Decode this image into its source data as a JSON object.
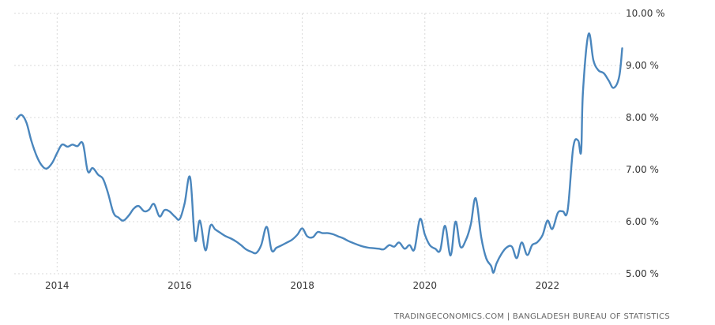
{
  "chart_data": {
    "type": "line",
    "title": "",
    "xlabel": "",
    "ylabel": "",
    "xlim": [
      2013.3,
      2023.2
    ],
    "ylim": [
      5.0,
      10.0
    ],
    "grid": true,
    "x_ticks": [
      {
        "value": 2014,
        "label": "2014"
      },
      {
        "value": 2016,
        "label": "2016"
      },
      {
        "value": 2018,
        "label": "2018"
      },
      {
        "value": 2020,
        "label": "2020"
      },
      {
        "value": 2022,
        "label": "2022"
      }
    ],
    "y_ticks": [
      {
        "value": 5,
        "label": "5.00 %"
      },
      {
        "value": 6,
        "label": "6.00 %"
      },
      {
        "value": 7,
        "label": "7.00 %"
      },
      {
        "value": 8,
        "label": "8.00 %"
      },
      {
        "value": 9,
        "label": "9.00 %"
      },
      {
        "value": 10,
        "label": "10.00 %"
      }
    ],
    "series": [
      {
        "color": "#4a86bd",
        "points": [
          [
            2013.34,
            7.97
          ],
          [
            2013.42,
            8.05
          ],
          [
            2013.5,
            7.9
          ],
          [
            2013.58,
            7.55
          ],
          [
            2013.67,
            7.25
          ],
          [
            2013.75,
            7.08
          ],
          [
            2013.83,
            7.02
          ],
          [
            2013.92,
            7.13
          ],
          [
            2014.0,
            7.32
          ],
          [
            2014.08,
            7.48
          ],
          [
            2014.17,
            7.44
          ],
          [
            2014.25,
            7.48
          ],
          [
            2014.33,
            7.45
          ],
          [
            2014.42,
            7.5
          ],
          [
            2014.5,
            6.97
          ],
          [
            2014.58,
            7.03
          ],
          [
            2014.67,
            6.9
          ],
          [
            2014.75,
            6.82
          ],
          [
            2014.83,
            6.55
          ],
          [
            2014.92,
            6.17
          ],
          [
            2015.0,
            6.08
          ],
          [
            2015.08,
            6.02
          ],
          [
            2015.17,
            6.12
          ],
          [
            2015.25,
            6.25
          ],
          [
            2015.33,
            6.3
          ],
          [
            2015.42,
            6.2
          ],
          [
            2015.5,
            6.23
          ],
          [
            2015.58,
            6.34
          ],
          [
            2015.67,
            6.1
          ],
          [
            2015.75,
            6.22
          ],
          [
            2015.83,
            6.2
          ],
          [
            2015.92,
            6.1
          ],
          [
            2016.0,
            6.05
          ],
          [
            2016.08,
            6.35
          ],
          [
            2016.17,
            6.85
          ],
          [
            2016.25,
            5.65
          ],
          [
            2016.33,
            6.02
          ],
          [
            2016.42,
            5.45
          ],
          [
            2016.5,
            5.92
          ],
          [
            2016.58,
            5.85
          ],
          [
            2016.67,
            5.78
          ],
          [
            2016.75,
            5.72
          ],
          [
            2016.83,
            5.68
          ],
          [
            2016.92,
            5.62
          ],
          [
            2017.0,
            5.55
          ],
          [
            2017.08,
            5.47
          ],
          [
            2017.17,
            5.42
          ],
          [
            2017.25,
            5.4
          ],
          [
            2017.33,
            5.55
          ],
          [
            2017.42,
            5.9
          ],
          [
            2017.5,
            5.45
          ],
          [
            2017.58,
            5.5
          ],
          [
            2017.67,
            5.55
          ],
          [
            2017.75,
            5.6
          ],
          [
            2017.83,
            5.65
          ],
          [
            2017.92,
            5.75
          ],
          [
            2018.0,
            5.87
          ],
          [
            2018.08,
            5.72
          ],
          [
            2018.17,
            5.7
          ],
          [
            2018.25,
            5.8
          ],
          [
            2018.33,
            5.78
          ],
          [
            2018.42,
            5.78
          ],
          [
            2018.5,
            5.76
          ],
          [
            2018.58,
            5.72
          ],
          [
            2018.67,
            5.68
          ],
          [
            2018.75,
            5.63
          ],
          [
            2018.83,
            5.59
          ],
          [
            2018.92,
            5.55
          ],
          [
            2019.0,
            5.52
          ],
          [
            2019.08,
            5.5
          ],
          [
            2019.17,
            5.49
          ],
          [
            2019.25,
            5.48
          ],
          [
            2019.33,
            5.47
          ],
          [
            2019.42,
            5.55
          ],
          [
            2019.5,
            5.52
          ],
          [
            2019.58,
            5.6
          ],
          [
            2019.67,
            5.48
          ],
          [
            2019.75,
            5.55
          ],
          [
            2019.83,
            5.47
          ],
          [
            2019.92,
            6.05
          ],
          [
            2020.0,
            5.75
          ],
          [
            2020.08,
            5.55
          ],
          [
            2020.17,
            5.48
          ],
          [
            2020.25,
            5.45
          ],
          [
            2020.33,
            5.92
          ],
          [
            2020.42,
            5.35
          ],
          [
            2020.5,
            6.0
          ],
          [
            2020.58,
            5.52
          ],
          [
            2020.67,
            5.65
          ],
          [
            2020.75,
            5.95
          ],
          [
            2020.83,
            6.45
          ],
          [
            2020.92,
            5.7
          ],
          [
            2021.0,
            5.3
          ],
          [
            2021.08,
            5.15
          ],
          [
            2021.12,
            5.02
          ],
          [
            2021.17,
            5.2
          ],
          [
            2021.25,
            5.38
          ],
          [
            2021.33,
            5.5
          ],
          [
            2021.42,
            5.52
          ],
          [
            2021.5,
            5.3
          ],
          [
            2021.58,
            5.6
          ],
          [
            2021.67,
            5.36
          ],
          [
            2021.75,
            5.55
          ],
          [
            2021.83,
            5.6
          ],
          [
            2021.92,
            5.74
          ],
          [
            2022.0,
            6.02
          ],
          [
            2022.08,
            5.86
          ],
          [
            2022.17,
            6.17
          ],
          [
            2022.25,
            6.2
          ],
          [
            2022.33,
            6.22
          ],
          [
            2022.42,
            7.42
          ],
          [
            2022.5,
            7.56
          ],
          [
            2022.55,
            7.35
          ],
          [
            2022.58,
            8.5
          ],
          [
            2022.67,
            9.6
          ],
          [
            2022.75,
            9.1
          ],
          [
            2022.83,
            8.91
          ],
          [
            2022.92,
            8.85
          ],
          [
            2023.0,
            8.71
          ],
          [
            2023.08,
            8.57
          ],
          [
            2023.17,
            8.78
          ],
          [
            2023.22,
            9.33
          ]
        ]
      }
    ]
  },
  "footer": {
    "source": "TRADINGECONOMICS.COM  |  BANGLADESH BUREAU OF STATISTICS"
  }
}
